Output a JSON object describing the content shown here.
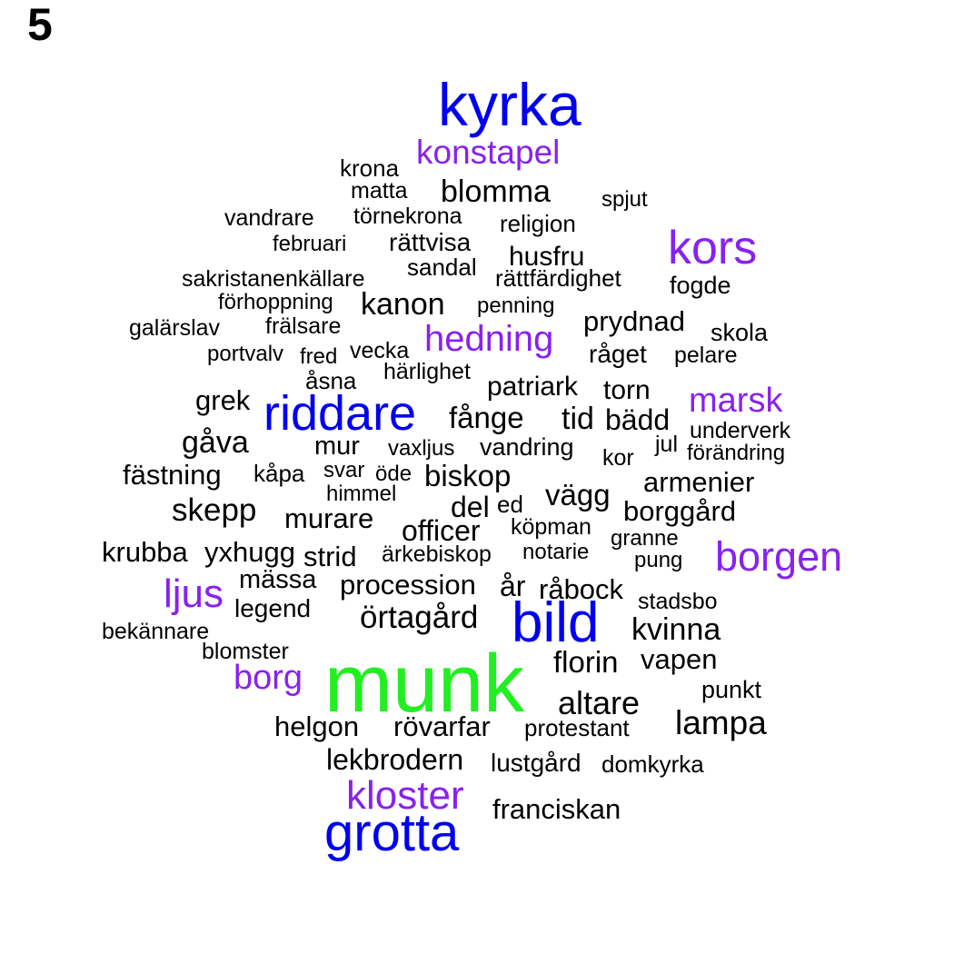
{
  "panel_label": "5",
  "colors": {
    "tier1": "#22ee22",
    "tier2": "#0000ee",
    "tier3": "#8822ee",
    "tier4": "#000000"
  },
  "words": [
    {
      "text": "munk",
      "tier": 1
    },
    {
      "text": "kyrka",
      "tier": 2
    },
    {
      "text": "riddare",
      "tier": 2
    },
    {
      "text": "bild",
      "tier": 2
    },
    {
      "text": "grotta",
      "tier": 2
    },
    {
      "text": "konstapel",
      "tier": 3
    },
    {
      "text": "kors",
      "tier": 3
    },
    {
      "text": "hedning",
      "tier": 3
    },
    {
      "text": "marsk",
      "tier": 3
    },
    {
      "text": "borgen",
      "tier": 3
    },
    {
      "text": "ljus",
      "tier": 3
    },
    {
      "text": "borg",
      "tier": 3
    },
    {
      "text": "kloster",
      "tier": 3
    },
    {
      "text": "krona",
      "tier": 4
    },
    {
      "text": "matta",
      "tier": 4
    },
    {
      "text": "blomma",
      "tier": 4
    },
    {
      "text": "spjut",
      "tier": 4
    },
    {
      "text": "vandrare",
      "tier": 4
    },
    {
      "text": "törnekrona",
      "tier": 4
    },
    {
      "text": "religion",
      "tier": 4
    },
    {
      "text": "februari",
      "tier": 4
    },
    {
      "text": "rättvisa",
      "tier": 4
    },
    {
      "text": "husfru",
      "tier": 4
    },
    {
      "text": "sandal",
      "tier": 4
    },
    {
      "text": "sakristanenkällare",
      "tier": 4
    },
    {
      "text": "rättfärdighet",
      "tier": 4
    },
    {
      "text": "fogde",
      "tier": 4
    },
    {
      "text": "förhoppning",
      "tier": 4
    },
    {
      "text": "kanon",
      "tier": 4
    },
    {
      "text": "penning",
      "tier": 4
    },
    {
      "text": "prydnad",
      "tier": 4
    },
    {
      "text": "galärslav",
      "tier": 4
    },
    {
      "text": "frälsare",
      "tier": 4
    },
    {
      "text": "skola",
      "tier": 4
    },
    {
      "text": "portvalv",
      "tier": 4
    },
    {
      "text": "fred",
      "tier": 4
    },
    {
      "text": "vecka",
      "tier": 4
    },
    {
      "text": "råget",
      "tier": 4
    },
    {
      "text": "pelare",
      "tier": 4
    },
    {
      "text": "åsna",
      "tier": 4
    },
    {
      "text": "härlighet",
      "tier": 4
    },
    {
      "text": "patriark",
      "tier": 4
    },
    {
      "text": "torn",
      "tier": 4
    },
    {
      "text": "grek",
      "tier": 4
    },
    {
      "text": "fånge",
      "tier": 4
    },
    {
      "text": "tid",
      "tier": 4
    },
    {
      "text": "bädd",
      "tier": 4
    },
    {
      "text": "underverk",
      "tier": 4
    },
    {
      "text": "gåva",
      "tier": 4
    },
    {
      "text": "mur",
      "tier": 4
    },
    {
      "text": "vaxljus",
      "tier": 4
    },
    {
      "text": "vandring",
      "tier": 4
    },
    {
      "text": "jul",
      "tier": 4
    },
    {
      "text": "förändring",
      "tier": 4
    },
    {
      "text": "kor",
      "tier": 4
    },
    {
      "text": "fästning",
      "tier": 4
    },
    {
      "text": "kåpa",
      "tier": 4
    },
    {
      "text": "svar",
      "tier": 4
    },
    {
      "text": "öde",
      "tier": 4
    },
    {
      "text": "biskop",
      "tier": 4
    },
    {
      "text": "armenier",
      "tier": 4
    },
    {
      "text": "himmel",
      "tier": 4
    },
    {
      "text": "skepp",
      "tier": 4
    },
    {
      "text": "del",
      "tier": 4
    },
    {
      "text": "ed",
      "tier": 4
    },
    {
      "text": "vägg",
      "tier": 4
    },
    {
      "text": "borggård",
      "tier": 4
    },
    {
      "text": "murare",
      "tier": 4
    },
    {
      "text": "officer",
      "tier": 4
    },
    {
      "text": "köpman",
      "tier": 4
    },
    {
      "text": "granne",
      "tier": 4
    },
    {
      "text": "krubba",
      "tier": 4
    },
    {
      "text": "yxhugg",
      "tier": 4
    },
    {
      "text": "strid",
      "tier": 4
    },
    {
      "text": "ärkebiskop",
      "tier": 4
    },
    {
      "text": "notarie",
      "tier": 4
    },
    {
      "text": "pung",
      "tier": 4
    },
    {
      "text": "mässa",
      "tier": 4
    },
    {
      "text": "procession",
      "tier": 4
    },
    {
      "text": "år",
      "tier": 4
    },
    {
      "text": "råbock",
      "tier": 4
    },
    {
      "text": "legend",
      "tier": 4
    },
    {
      "text": "stadsbo",
      "tier": 4
    },
    {
      "text": "örtagård",
      "tier": 4
    },
    {
      "text": "kvinna",
      "tier": 4
    },
    {
      "text": "bekännare",
      "tier": 4
    },
    {
      "text": "blomster",
      "tier": 4
    },
    {
      "text": "florin",
      "tier": 4
    },
    {
      "text": "vapen",
      "tier": 4
    },
    {
      "text": "punkt",
      "tier": 4
    },
    {
      "text": "altare",
      "tier": 4
    },
    {
      "text": "lampa",
      "tier": 4
    },
    {
      "text": "helgon",
      "tier": 4
    },
    {
      "text": "rövarfar",
      "tier": 4
    },
    {
      "text": "protestant",
      "tier": 4
    },
    {
      "text": "lekbrodern",
      "tier": 4
    },
    {
      "text": "lustgård",
      "tier": 4
    },
    {
      "text": "domkyrka",
      "tier": 4
    },
    {
      "text": "franciskan",
      "tier": 4
    }
  ]
}
